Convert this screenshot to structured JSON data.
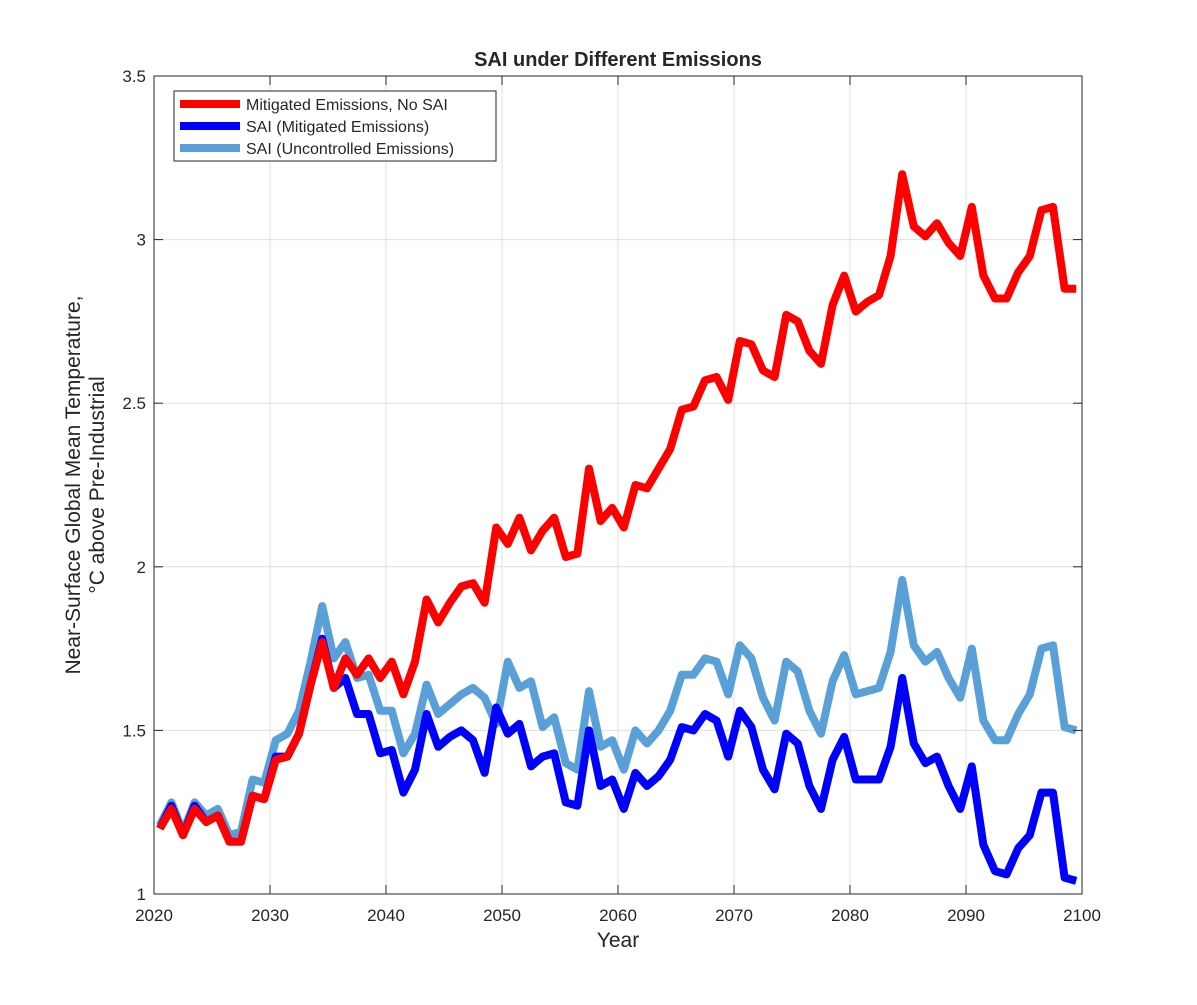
{
  "chart_data": {
    "type": "line",
    "title": "SAI under Different Emissions",
    "xlabel": "Year",
    "ylabel": [
      "Near-Surface Global Mean Temperature,",
      "°C above Pre-Industrial"
    ],
    "xlim": [
      2020,
      2100
    ],
    "ylim": [
      1,
      3.5
    ],
    "xticks": [
      2020,
      2030,
      2040,
      2050,
      2060,
      2070,
      2080,
      2090,
      2100
    ],
    "yticks": [
      1,
      1.5,
      2,
      2.5,
      3,
      3.5
    ],
    "xtick_labels": [
      "2020",
      "2030",
      "2040",
      "2050",
      "2060",
      "2070",
      "2080",
      "2090",
      "2100"
    ],
    "ytick_labels": [
      "1",
      "1.5",
      "2",
      "2.5",
      "3",
      "3.5"
    ],
    "grid": true,
    "legend_position": "top-left",
    "x": [
      2020.5,
      2021.5,
      2022.5,
      2023.5,
      2024.5,
      2025.5,
      2026.5,
      2027.5,
      2028.5,
      2029.5,
      2030.5,
      2031.5,
      2032.5,
      2033.5,
      2034.5,
      2035.5,
      2036.5,
      2037.5,
      2038.5,
      2039.5,
      2040.5,
      2041.5,
      2042.5,
      2043.5,
      2044.5,
      2045.5,
      2046.5,
      2047.5,
      2048.5,
      2049.5,
      2050.5,
      2051.5,
      2052.5,
      2053.5,
      2054.5,
      2055.5,
      2056.5,
      2057.5,
      2058.5,
      2059.5,
      2060.5,
      2061.5,
      2062.5,
      2063.5,
      2064.5,
      2065.5,
      2066.5,
      2067.5,
      2068.5,
      2069.5,
      2070.5,
      2071.5,
      2072.5,
      2073.5,
      2074.5,
      2075.5,
      2076.5,
      2077.5,
      2078.5,
      2079.5,
      2080.5,
      2081.5,
      2082.5,
      2083.5,
      2084.5,
      2085.5,
      2086.5,
      2087.5,
      2088.5,
      2089.5,
      2090.5,
      2091.5,
      2092.5,
      2093.5,
      2094.5,
      2095.5,
      2096.5,
      2097.5,
      2098.5,
      2099.5
    ],
    "series": [
      {
        "name": "Mitigated Emissions, No SAI",
        "color": "#ff0000",
        "values": [
          1.2,
          1.26,
          1.18,
          1.26,
          1.22,
          1.24,
          1.16,
          1.16,
          1.3,
          1.29,
          1.41,
          1.42,
          1.49,
          1.64,
          1.77,
          1.63,
          1.72,
          1.67,
          1.72,
          1.66,
          1.71,
          1.61,
          1.71,
          1.9,
          1.83,
          1.89,
          1.94,
          1.95,
          1.89,
          2.12,
          2.07,
          2.15,
          2.05,
          2.11,
          2.15,
          2.03,
          2.04,
          2.3,
          2.14,
          2.18,
          2.12,
          2.25,
          2.24,
          2.3,
          2.36,
          2.48,
          2.49,
          2.57,
          2.58,
          2.51,
          2.69,
          2.68,
          2.6,
          2.58,
          2.77,
          2.75,
          2.66,
          2.62,
          2.8,
          2.89,
          2.78,
          2.81,
          2.83,
          2.95,
          3.2,
          3.04,
          3.01,
          3.05,
          2.99,
          2.95,
          3.1,
          2.89,
          2.82,
          2.82,
          2.9,
          2.95,
          3.09,
          3.1,
          2.85,
          2.85
        ]
      },
      {
        "name": "SAI (Mitigated Emissions)",
        "color": "#0000ff",
        "values": [
          1.2,
          1.27,
          1.18,
          1.27,
          1.22,
          1.24,
          1.16,
          1.16,
          1.3,
          1.29,
          1.42,
          1.42,
          1.49,
          1.64,
          1.78,
          1.63,
          1.66,
          1.55,
          1.55,
          1.43,
          1.44,
          1.31,
          1.38,
          1.55,
          1.45,
          1.48,
          1.5,
          1.47,
          1.37,
          1.57,
          1.49,
          1.52,
          1.39,
          1.42,
          1.43,
          1.28,
          1.27,
          1.5,
          1.33,
          1.35,
          1.26,
          1.37,
          1.33,
          1.36,
          1.41,
          1.51,
          1.5,
          1.55,
          1.53,
          1.42,
          1.56,
          1.51,
          1.38,
          1.32,
          1.49,
          1.46,
          1.33,
          1.26,
          1.41,
          1.48,
          1.35,
          1.35,
          1.35,
          1.45,
          1.66,
          1.46,
          1.4,
          1.42,
          1.33,
          1.26,
          1.39,
          1.15,
          1.07,
          1.06,
          1.14,
          1.18,
          1.31,
          1.31,
          1.05,
          1.04
        ]
      },
      {
        "name": "SAI (Uncontrolled Emissions)",
        "color": "#5aa0d8",
        "values": [
          1.21,
          1.28,
          1.19,
          1.28,
          1.24,
          1.26,
          1.18,
          1.19,
          1.35,
          1.34,
          1.47,
          1.49,
          1.56,
          1.71,
          1.88,
          1.72,
          1.77,
          1.66,
          1.67,
          1.56,
          1.56,
          1.43,
          1.49,
          1.64,
          1.55,
          1.58,
          1.61,
          1.63,
          1.6,
          1.52,
          1.71,
          1.63,
          1.65,
          1.51,
          1.54,
          1.4,
          1.38,
          1.62,
          1.45,
          1.47,
          1.38,
          1.5,
          1.46,
          1.5,
          1.56,
          1.67,
          1.67,
          1.72,
          1.71,
          1.61,
          1.76,
          1.72,
          1.6,
          1.53,
          1.71,
          1.68,
          1.56,
          1.49,
          1.65,
          1.73,
          1.61,
          1.62,
          1.63,
          1.74,
          1.96,
          1.76,
          1.71,
          1.74,
          1.66,
          1.6,
          1.75,
          1.53,
          1.47,
          1.47,
          1.55,
          1.61,
          1.75,
          1.76,
          1.51,
          1.5
        ]
      }
    ]
  }
}
